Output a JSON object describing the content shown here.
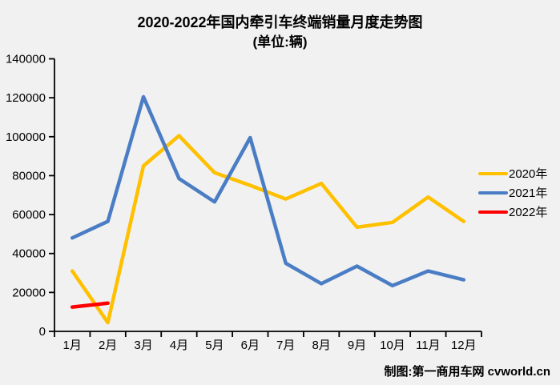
{
  "chart_data": {
    "type": "line",
    "title": "2020-2022年国内牵引车终端销量月度走势图",
    "subtitle": "(单位:辆)",
    "categories": [
      "1月",
      "2月",
      "3月",
      "4月",
      "5月",
      "6月",
      "7月",
      "8月",
      "9月",
      "10月",
      "11月",
      "12月"
    ],
    "series": [
      {
        "name": "2020年",
        "color": "#FFC000",
        "values": [
          31000,
          4500,
          85000,
          100500,
          81500,
          75000,
          68000,
          76000,
          53500,
          56000,
          69000,
          56500
        ]
      },
      {
        "name": "2021年",
        "color": "#4A7DC4",
        "values": [
          48000,
          56500,
          120500,
          78500,
          66500,
          99500,
          35000,
          24500,
          33500,
          23500,
          31000,
          26500
        ]
      },
      {
        "name": "2022年",
        "color": "#FF0000",
        "values": [
          12500,
          14500
        ]
      }
    ],
    "ylim": [
      0,
      140000
    ],
    "ytick_step": 20000,
    "grid": false,
    "legend_position": "right",
    "axis_color": "#000000",
    "background_color": "#F1F1F2"
  },
  "credit": "制图:第一商用车网 cvworld.cn"
}
